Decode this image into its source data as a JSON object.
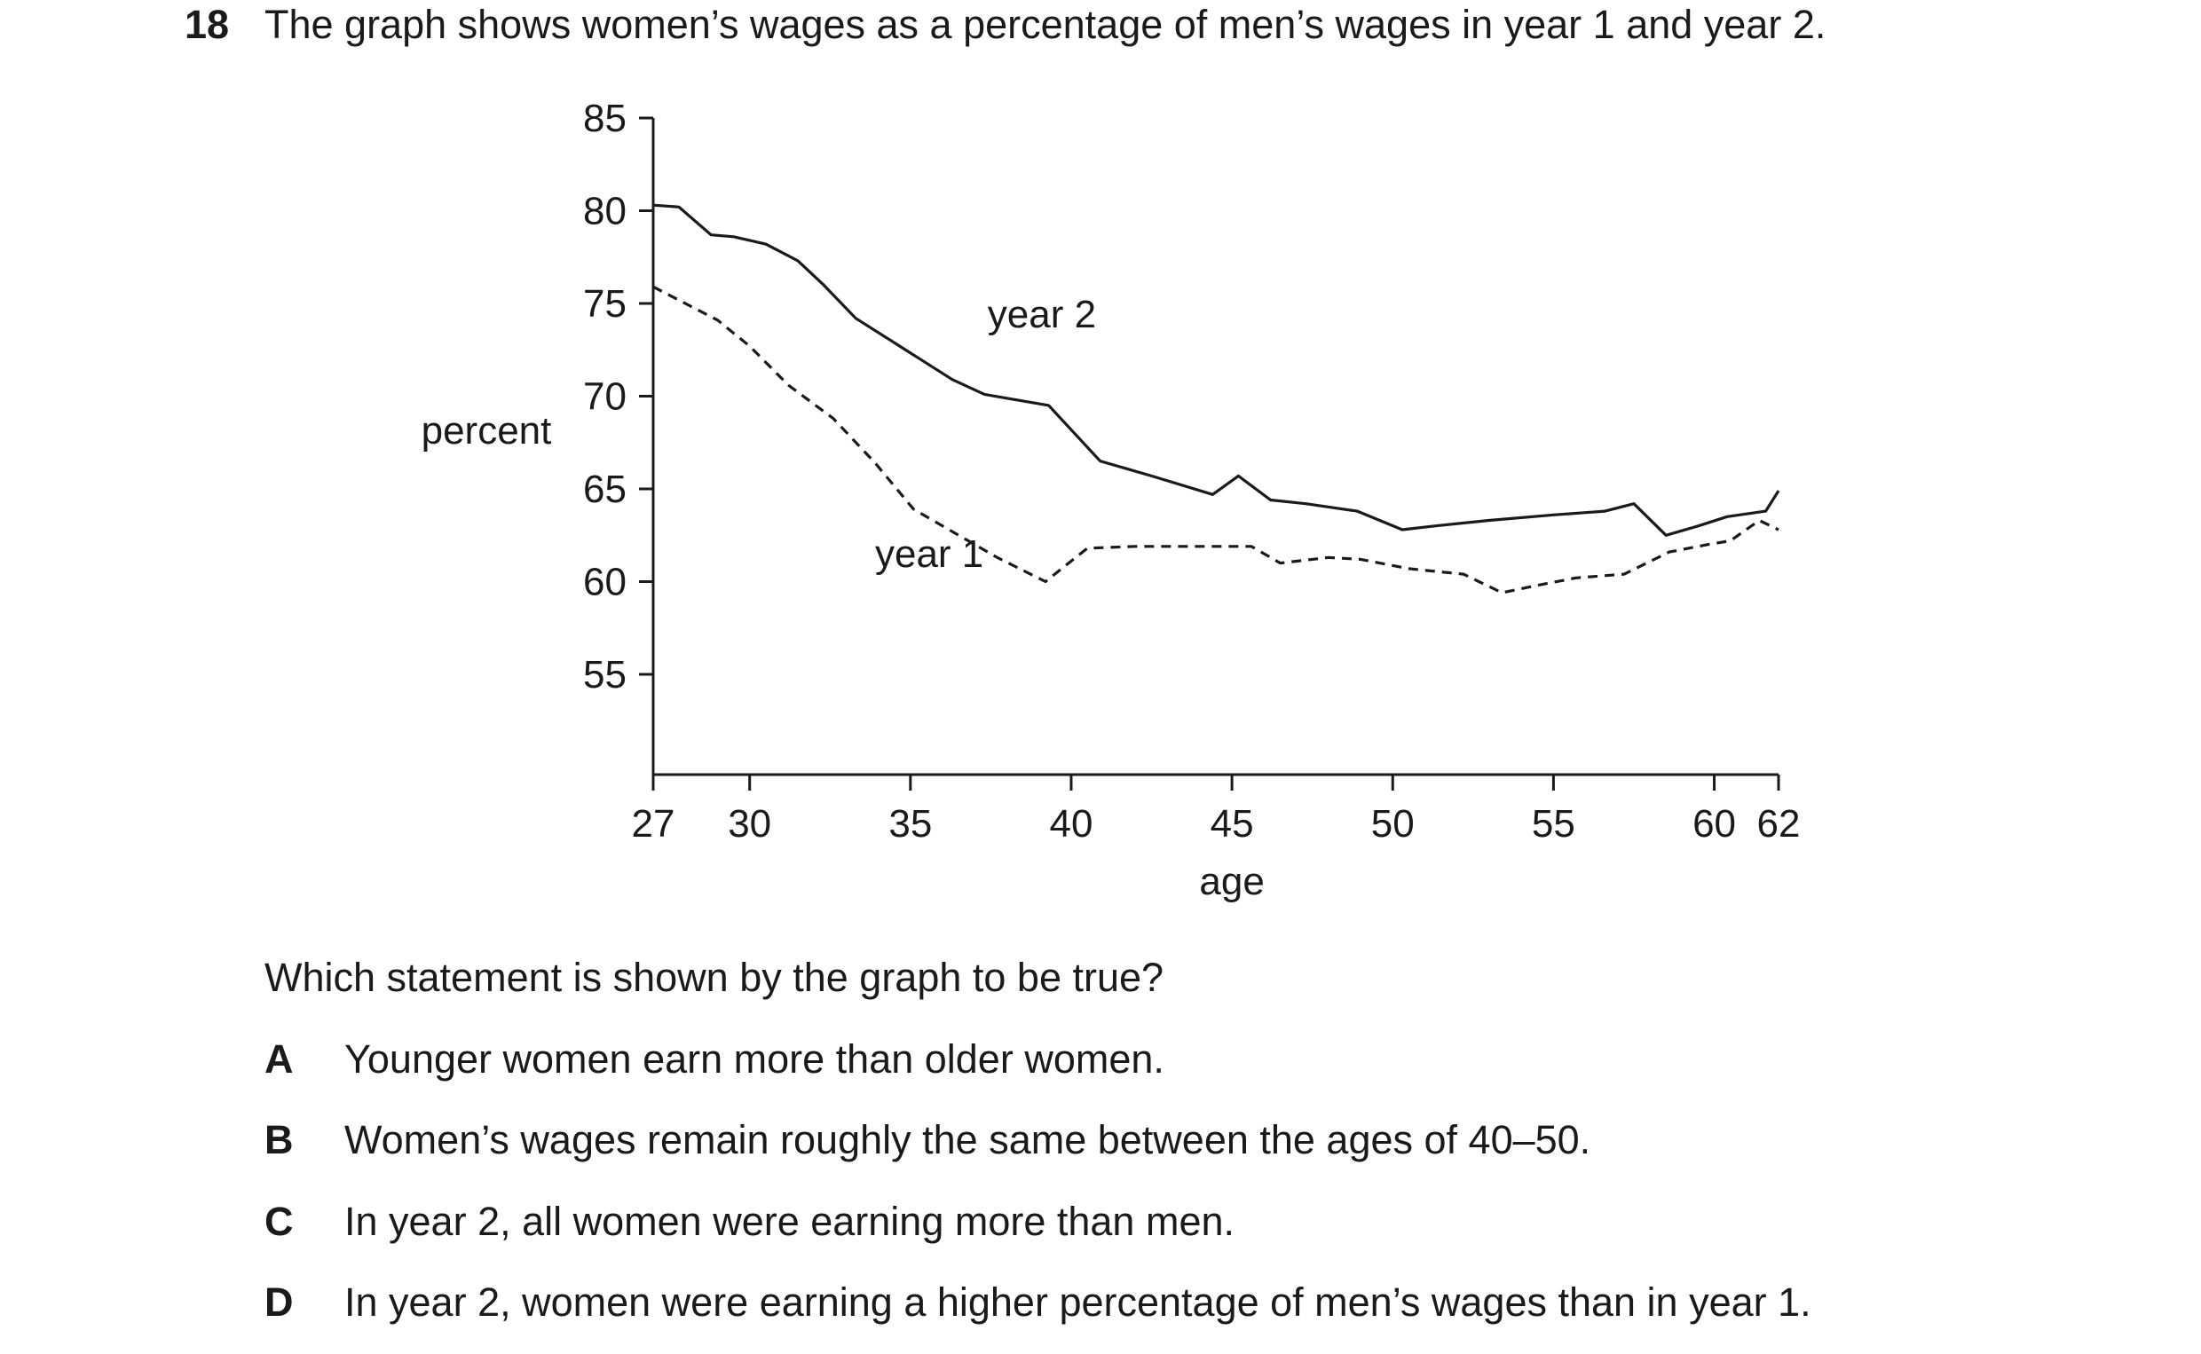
{
  "question": {
    "number": "18",
    "text": "The graph shows women’s wages as a percentage of men’s wages in year 1 and year 2."
  },
  "chart_data": {
    "type": "line",
    "title": "",
    "xlabel": "age",
    "ylabel": "percent",
    "xlim": [
      27,
      62
    ],
    "ylim": [
      50,
      85
    ],
    "x_ticks": [
      27,
      30,
      35,
      40,
      45,
      50,
      55,
      60,
      62
    ],
    "y_ticks": [
      55,
      60,
      65,
      70,
      75,
      80,
      85
    ],
    "grid": false,
    "legend": "none",
    "series": [
      {
        "name": "year 2",
        "line_style": "solid",
        "color": "#1a1a1a",
        "points": [
          [
            27,
            80.3
          ],
          [
            27.8,
            80.2
          ],
          [
            28.8,
            78.7
          ],
          [
            29.5,
            78.6
          ],
          [
            30.5,
            78.2
          ],
          [
            31.5,
            77.3
          ],
          [
            32.3,
            76.0
          ],
          [
            33.3,
            74.2
          ],
          [
            34.3,
            73.1
          ],
          [
            35.3,
            72.0
          ],
          [
            36.3,
            70.9
          ],
          [
            37.3,
            70.1
          ],
          [
            38.3,
            69.8
          ],
          [
            39.3,
            69.5
          ],
          [
            40.9,
            66.5
          ],
          [
            42.5,
            65.7
          ],
          [
            44.4,
            64.7
          ],
          [
            45.2,
            65.7
          ],
          [
            46.2,
            64.4
          ],
          [
            47.3,
            64.2
          ],
          [
            48.9,
            63.8
          ],
          [
            50.3,
            62.8
          ],
          [
            51.3,
            63.0
          ],
          [
            53.0,
            63.3
          ],
          [
            55.0,
            63.6
          ],
          [
            56.6,
            63.8
          ],
          [
            57.5,
            64.2
          ],
          [
            58.5,
            62.5
          ],
          [
            59.5,
            63.0
          ],
          [
            60.4,
            63.5
          ],
          [
            61.6,
            63.8
          ],
          [
            62.0,
            64.9
          ]
        ]
      },
      {
        "name": "year 1",
        "line_style": "dashed",
        "color": "#1a1a1a",
        "points": [
          [
            27,
            75.9
          ],
          [
            28.0,
            75.0
          ],
          [
            29.0,
            74.1
          ],
          [
            30.0,
            72.7
          ],
          [
            31.2,
            70.6
          ],
          [
            32.6,
            68.8
          ],
          [
            33.9,
            66.4
          ],
          [
            35.1,
            63.9
          ],
          [
            36.5,
            62.5
          ],
          [
            37.7,
            61.3
          ],
          [
            39.2,
            60.0
          ],
          [
            40.5,
            61.8
          ],
          [
            42.0,
            61.9
          ],
          [
            44.0,
            61.9
          ],
          [
            45.6,
            61.9
          ],
          [
            46.5,
            61.0
          ],
          [
            48.0,
            61.3
          ],
          [
            49.0,
            61.2
          ],
          [
            50.5,
            60.7
          ],
          [
            52.2,
            60.4
          ],
          [
            53.4,
            59.4
          ],
          [
            54.5,
            59.8
          ],
          [
            55.7,
            60.2
          ],
          [
            57.2,
            60.4
          ],
          [
            58.6,
            61.6
          ],
          [
            59.8,
            62.0
          ],
          [
            60.5,
            62.2
          ],
          [
            61.4,
            63.3
          ],
          [
            62.0,
            62.8
          ]
        ]
      }
    ],
    "annotations": [
      {
        "text": "year 2",
        "x": 37.4,
        "y": 73.7
      },
      {
        "text": "year 1",
        "x": 33.9,
        "y": 60.8
      }
    ]
  },
  "prompt": "Which statement is shown by the graph to be true?",
  "options": [
    {
      "letter": "A",
      "text": "Younger women earn more than older women."
    },
    {
      "letter": "B",
      "text": "Women’s wages remain roughly the same between the ages of 40–50."
    },
    {
      "letter": "C",
      "text": "In year 2, all women were earning more than men."
    },
    {
      "letter": "D",
      "text": "In year 2, women were earning a higher percentage of men’s wages than in year 1."
    }
  ]
}
